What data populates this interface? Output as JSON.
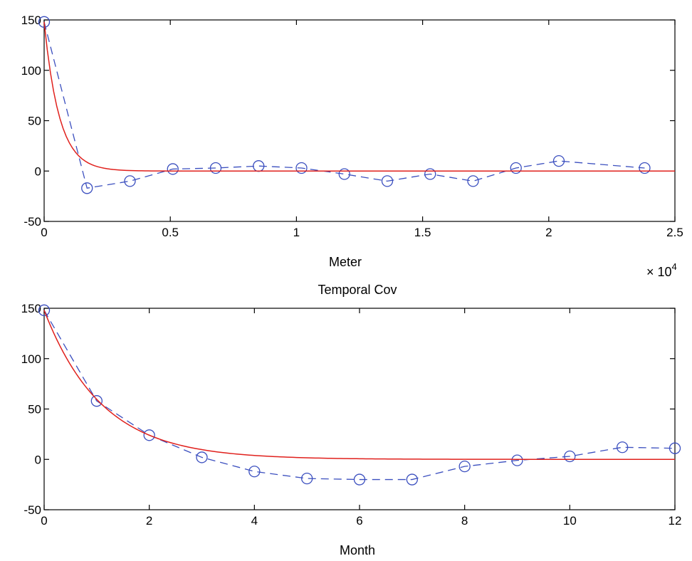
{
  "chart_data": [
    {
      "type": "line",
      "title": "",
      "xlabel": "Meter",
      "ylabel": "",
      "x_multiplier": "× 10",
      "x_multiplier_exp": "4",
      "xlim": [
        0,
        25000
      ],
      "ylim": [
        -50,
        150
      ],
      "xticks": [
        0,
        5000,
        10000,
        15000,
        20000,
        25000
      ],
      "xtick_labels": [
        "0",
        "0.5",
        "1",
        "1.5",
        "2",
        "2.5"
      ],
      "yticks": [
        -50,
        0,
        50,
        100,
        150
      ],
      "ytick_labels": [
        "-50",
        "0",
        "50",
        "100",
        "150"
      ],
      "grid": false,
      "series": [
        {
          "style": "dashed-circles",
          "color": "#3b4fbf",
          "x": [
            0,
            1700,
            3400,
            5100,
            6800,
            8500,
            10200,
            11900,
            13600,
            15300,
            17000,
            18700,
            20400,
            23800
          ],
          "y": [
            148,
            -17,
            -10,
            2,
            3,
            5,
            3,
            -3,
            -10,
            -3,
            -10,
            3,
            10,
            3
          ]
        },
        {
          "style": "solid",
          "color": "#e0201c",
          "fit": "exp",
          "x0": 0,
          "x1": 25000,
          "amplitude": 148,
          "scale": 600
        }
      ]
    },
    {
      "type": "line",
      "title": "Temporal Cov",
      "xlabel": "Month",
      "ylabel": "",
      "xlim": [
        0,
        12
      ],
      "ylim": [
        -50,
        150
      ],
      "xticks": [
        0,
        2,
        4,
        6,
        8,
        10,
        12
      ],
      "xtick_labels": [
        "0",
        "2",
        "4",
        "6",
        "8",
        "10",
        "12"
      ],
      "yticks": [
        -50,
        0,
        50,
        100,
        150
      ],
      "ytick_labels": [
        "-50",
        "0",
        "50",
        "100",
        "150"
      ],
      "grid": false,
      "series": [
        {
          "style": "dashed-circles",
          "color": "#3b4fbf",
          "x": [
            0,
            1,
            2,
            3,
            4,
            5,
            6,
            7,
            8,
            9,
            10,
            11,
            12
          ],
          "y": [
            148,
            58,
            24,
            2,
            -12,
            -19,
            -20,
            -20,
            -7,
            -1,
            3,
            12,
            11
          ]
        },
        {
          "style": "solid",
          "color": "#e0201c",
          "fit": "exp",
          "x0": 0,
          "x1": 12,
          "amplitude": 148,
          "scale": 1.1
        }
      ]
    }
  ]
}
